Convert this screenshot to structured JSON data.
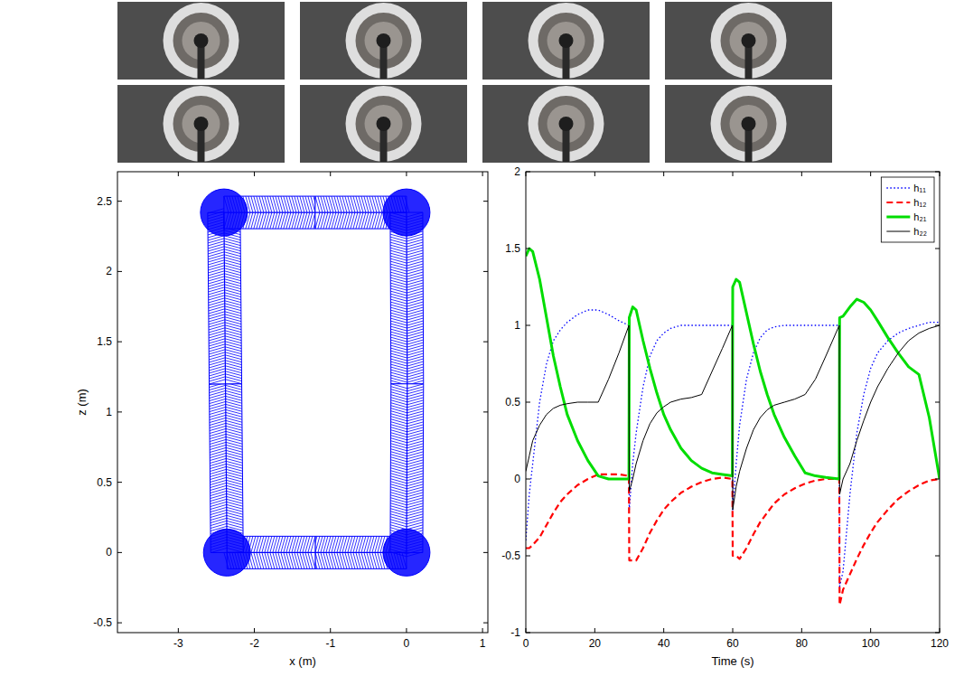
{
  "chart_data": [
    {
      "type": "line",
      "xlabel": "x (m)",
      "ylabel": "z (m)",
      "x": [
        0,
        -1.2,
        -2.36,
        -2.38,
        -2.4,
        -1.2,
        0,
        0.01,
        0
      ],
      "values": [
        0,
        0,
        0,
        1.2,
        2.42,
        2.42,
        2.42,
        1.2,
        0
      ],
      "color": "#0000ff",
      "marker": "circle",
      "xlim": [
        -3.8,
        1.07
      ],
      "xticks": [
        -3,
        -2,
        -1,
        0,
        1
      ],
      "ylim": [
        -0.57,
        2.71
      ],
      "yticks": [
        -0.5,
        0,
        0.5,
        1,
        1.5,
        2,
        2.5
      ],
      "grid": false
    },
    {
      "type": "line",
      "xlabel": "Time (s)",
      "x": [
        0,
        1,
        2,
        4,
        6,
        8,
        10,
        12,
        15,
        18,
        21,
        24,
        27,
        29.9,
        30,
        31,
        32,
        34,
        36,
        38,
        40,
        42,
        45,
        48,
        51,
        54,
        57,
        59.9,
        60,
        61,
        62,
        64,
        66,
        68,
        70,
        72,
        75,
        78,
        81,
        84,
        87,
        90.9,
        91,
        92,
        94,
        96,
        98,
        100,
        102,
        105,
        108,
        111,
        114,
        117,
        120
      ],
      "series": [
        {
          "name": "h₁₁",
          "color": "#0000ff",
          "line_style": "dotted",
          "values": [
            -0.4,
            -0.1,
            0.1,
            0.5,
            0.75,
            0.9,
            0.97,
            1.02,
            1.07,
            1.1,
            1.1,
            1.07,
            1.03,
            1.0,
            -0.2,
            0.1,
            0.3,
            0.6,
            0.8,
            0.9,
            0.95,
            0.98,
            1.0,
            1.0,
            1.0,
            1.0,
            1.0,
            1.0,
            -0.2,
            0.1,
            0.35,
            0.65,
            0.82,
            0.92,
            0.97,
            0.99,
            1.0,
            1.0,
            1.0,
            1.0,
            1.0,
            1.0,
            -0.7,
            -0.6,
            -0.1,
            0.3,
            0.55,
            0.72,
            0.82,
            0.9,
            0.95,
            0.98,
            1.0,
            1.02,
            1.02
          ]
        },
        {
          "name": "h₁₂",
          "color": "#ff0000",
          "line_style": "dashed",
          "values": [
            -0.45,
            -0.45,
            -0.43,
            -0.38,
            -0.3,
            -0.22,
            -0.15,
            -0.1,
            -0.04,
            0.0,
            0.03,
            0.03,
            0.03,
            0.02,
            -0.53,
            -0.53,
            -0.53,
            -0.45,
            -0.35,
            -0.27,
            -0.2,
            -0.15,
            -0.09,
            -0.05,
            -0.02,
            0.0,
            0.01,
            0.0,
            -0.5,
            -0.5,
            -0.52,
            -0.45,
            -0.36,
            -0.28,
            -0.22,
            -0.16,
            -0.1,
            -0.06,
            -0.03,
            -0.01,
            0.0,
            0.0,
            -0.82,
            -0.72,
            -0.62,
            -0.52,
            -0.43,
            -0.35,
            -0.28,
            -0.2,
            -0.13,
            -0.08,
            -0.04,
            -0.01,
            0.0
          ]
        },
        {
          "name": "h₂₁",
          "color": "#00dd00",
          "line_style": "solid",
          "values": [
            1.45,
            1.5,
            1.48,
            1.3,
            1.05,
            0.8,
            0.6,
            0.42,
            0.25,
            0.12,
            0.02,
            0.0,
            0.0,
            0.0,
            1.05,
            1.12,
            1.1,
            0.9,
            0.72,
            0.56,
            0.42,
            0.32,
            0.2,
            0.12,
            0.07,
            0.04,
            0.03,
            0.02,
            1.25,
            1.3,
            1.28,
            1.08,
            0.88,
            0.7,
            0.55,
            0.42,
            0.27,
            0.15,
            0.04,
            0.02,
            0.01,
            0.0,
            1.05,
            1.06,
            1.12,
            1.17,
            1.15,
            1.1,
            1.03,
            0.92,
            0.82,
            0.73,
            0.68,
            0.4,
            0.0
          ]
        },
        {
          "name": "h₂₂",
          "color": "#000000",
          "line_style": "solid",
          "values": [
            0.05,
            0.15,
            0.25,
            0.35,
            0.42,
            0.46,
            0.48,
            0.49,
            0.5,
            0.5,
            0.5,
            0.65,
            0.82,
            1.0,
            -0.08,
            0.0,
            0.1,
            0.25,
            0.36,
            0.43,
            0.47,
            0.5,
            0.52,
            0.53,
            0.55,
            0.7,
            0.85,
            1.0,
            -0.2,
            -0.05,
            0.05,
            0.2,
            0.32,
            0.4,
            0.45,
            0.48,
            0.5,
            0.52,
            0.55,
            0.65,
            0.8,
            1.0,
            -0.1,
            0.0,
            0.1,
            0.25,
            0.38,
            0.5,
            0.6,
            0.72,
            0.82,
            0.9,
            0.95,
            0.98,
            1.0
          ]
        }
      ],
      "xlim": [
        0,
        120
      ],
      "xticks": [
        0,
        20,
        40,
        60,
        80,
        100,
        120
      ],
      "ylim": [
        -1,
        2
      ],
      "yticks": [
        -1,
        -0.5,
        0,
        0.5,
        1,
        1.5,
        2
      ],
      "legend": "upper right",
      "grid": false
    }
  ]
}
